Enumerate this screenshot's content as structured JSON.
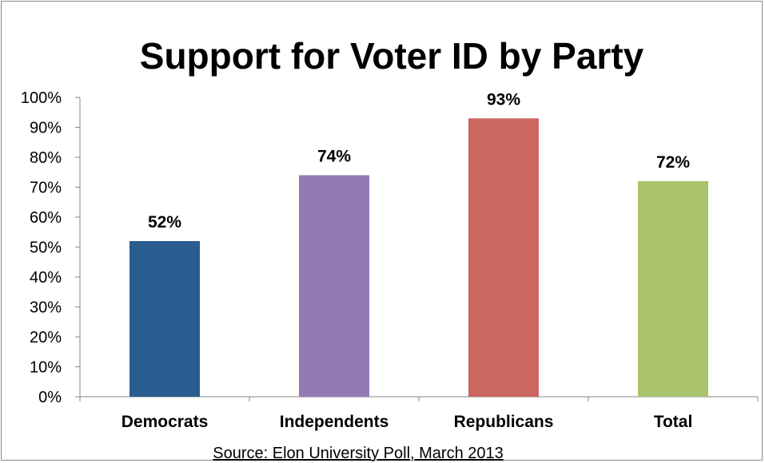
{
  "chart_data": {
    "type": "bar",
    "title": "Support for Voter ID by Party",
    "categories": [
      "Democrats",
      "Independents",
      "Republicans",
      "Total"
    ],
    "values": [
      52,
      74,
      93,
      72
    ],
    "data_labels": [
      "52%",
      "74%",
      "93%",
      "72%"
    ],
    "colors": [
      "#2a5d8f",
      "#937ab3",
      "#cc6660",
      "#a9c46c"
    ],
    "ylim": [
      0,
      100
    ],
    "yticks": [
      0,
      10,
      20,
      30,
      40,
      50,
      60,
      70,
      80,
      90,
      100
    ],
    "ytick_labels": [
      "0%",
      "10%",
      "20%",
      "30%",
      "40%",
      "50%",
      "60%",
      "70%",
      "80%",
      "90%",
      "100%"
    ],
    "xlabel": "",
    "ylabel": "",
    "grid": false,
    "legend": "none",
    "source": "Source: Elon University Poll, March 2013"
  }
}
